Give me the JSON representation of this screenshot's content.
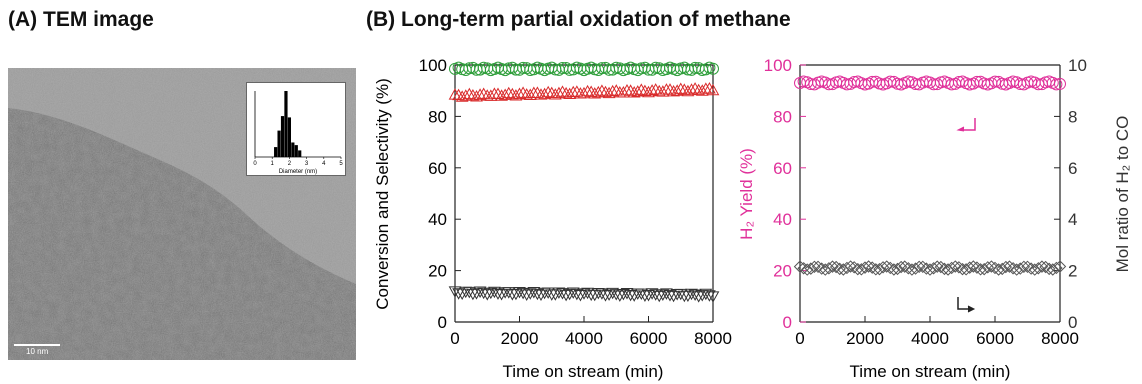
{
  "panel_a": {
    "title": "(A) TEM image",
    "scale_bar": "10 nm",
    "inset": {
      "xlabel": "Diameter (nm)",
      "x_ticks": [
        "0",
        "1",
        "2",
        "3",
        "4",
        "5"
      ]
    }
  },
  "panel_b": {
    "title": "(B) Long-term partial oxidation of methane"
  },
  "colors": {
    "green": "#2e9e3a",
    "red": "#d92b2b",
    "dark": "#333333",
    "magenta": "#e0309a",
    "gray": "#555555"
  },
  "chart_data": [
    {
      "type": "bar",
      "title": "",
      "xlabel": "Diameter (nm)",
      "ylabel": "",
      "xlim": [
        0,
        5
      ],
      "ylim": [
        0,
        1
      ],
      "x": [
        1.2,
        1.4,
        1.6,
        1.8,
        2.0,
        2.2,
        2.4,
        2.6
      ],
      "values": [
        0.15,
        0.4,
        0.62,
        1.0,
        0.6,
        0.22,
        0.18,
        0.1
      ]
    },
    {
      "type": "scatter",
      "title": "",
      "xlabel": "Time on stream (min)",
      "ylabel": "Conversion and Selectivity (%)",
      "xlim": [
        0,
        8000
      ],
      "ylim": [
        0,
        100
      ],
      "x_ticks": [
        "0",
        "2000",
        "4000",
        "6000",
        "8000"
      ],
      "y_ticks": [
        "0",
        "20",
        "40",
        "60",
        "80",
        "100"
      ],
      "series": [
        {
          "marker": "circle",
          "color": "#2e9e3a",
          "start": 98.5,
          "end": 98.5
        },
        {
          "marker": "triangle-up",
          "color": "#d92b2b",
          "start": 88,
          "end": 90.5
        },
        {
          "marker": "triangle-down",
          "color": "#333333",
          "start": 11.5,
          "end": 10.5
        }
      ]
    },
    {
      "type": "scatter",
      "title": "",
      "xlabel": "Time on stream (min)",
      "ylabel_left": "H₂ Yield (%)",
      "ylabel_right": "Mol ratio of H₂ to CO",
      "xlim": [
        0,
        8000
      ],
      "ylim_left": [
        0,
        100
      ],
      "ylim_right": [
        0,
        10
      ],
      "x_ticks": [
        "0",
        "2000",
        "4000",
        "6000",
        "8000"
      ],
      "y_ticks_left": [
        "0",
        "20",
        "40",
        "60",
        "80",
        "100"
      ],
      "y_ticks_right": [
        "0",
        "2",
        "4",
        "6",
        "8",
        "10"
      ],
      "series": [
        {
          "marker": "circle",
          "color": "#e0309a",
          "axis": "left",
          "start": 93,
          "end": 93
        },
        {
          "marker": "diamond",
          "color": "#555555",
          "axis": "right",
          "start": 2.1,
          "end": 2.1
        }
      ]
    }
  ]
}
